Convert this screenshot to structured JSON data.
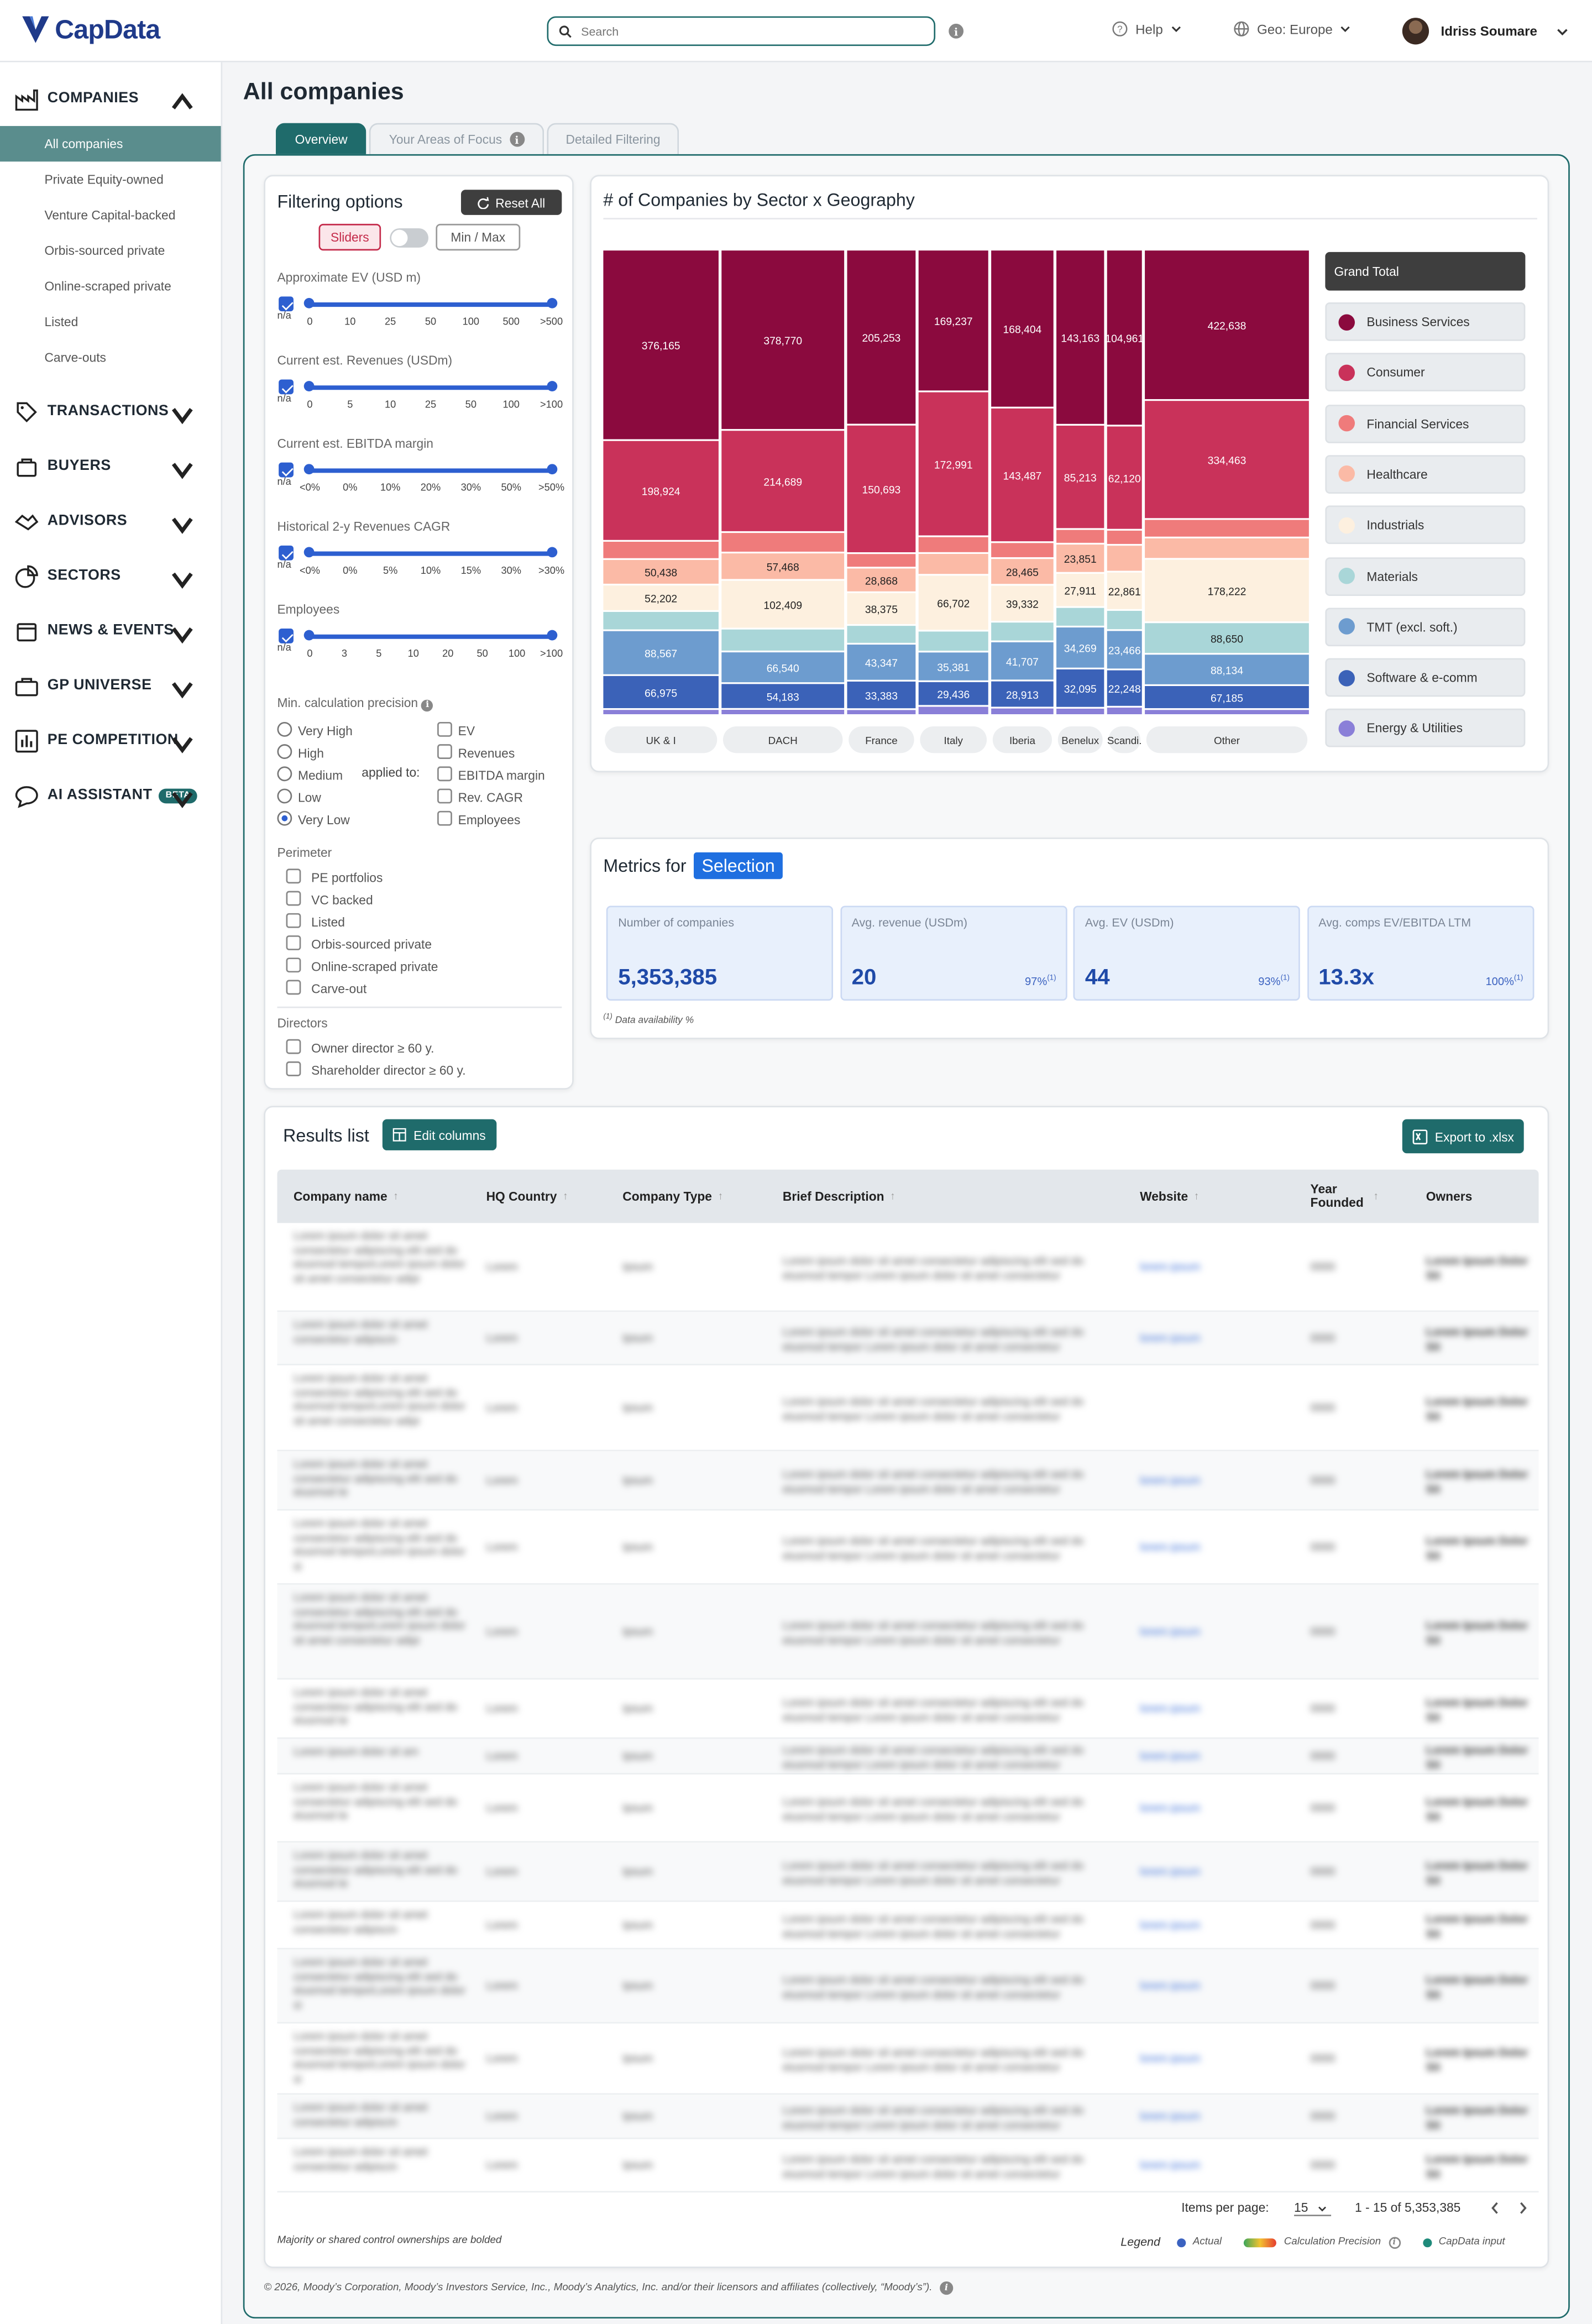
{
  "header": {
    "logo": "CapData",
    "search_placeholder": "Search",
    "help": "Help",
    "geo": "Geo: Europe",
    "user": "Idriss Soumare"
  },
  "sidebar": {
    "companies": "COMPANIES",
    "sub": [
      "All companies",
      "Private Equity-owned",
      "Venture Capital-backed",
      "Orbis-sourced private",
      "Online-scraped private",
      "Listed",
      "Carve-outs"
    ],
    "sections": [
      "TRANSACTIONS",
      "BUYERS",
      "ADVISORS",
      "SECTORS",
      "NEWS & EVENTS",
      "GP UNIVERSE",
      "PE COMPETITION",
      "AI ASSISTANT"
    ],
    "beta": "BETA"
  },
  "page": {
    "title": "All companies",
    "tabs": [
      "Overview",
      "Your Areas of Focus",
      "Detailed Filtering"
    ]
  },
  "filters": {
    "title": "Filtering options",
    "reset": "Reset All",
    "sliders": "Sliders",
    "minmax": "Min / Max",
    "sliders_list": [
      {
        "label": "Approximate EV (USD m)",
        "ticks": [
          "n/a",
          "0",
          "10",
          "25",
          "50",
          "100",
          "500",
          ">500"
        ]
      },
      {
        "label": "Current est. Revenues (USDm)",
        "ticks": [
          "n/a",
          "0",
          "5",
          "10",
          "25",
          "50",
          "100",
          ">100"
        ]
      },
      {
        "label": "Current est. EBITDA margin",
        "ticks": [
          "n/a",
          "<0%",
          "0%",
          "10%",
          "20%",
          "30%",
          "50%",
          ">50%"
        ]
      },
      {
        "label": "Historical 2-y Revenues CAGR",
        "ticks": [
          "n/a",
          "<0%",
          "0%",
          "5%",
          "10%",
          "15%",
          "30%",
          ">30%"
        ]
      },
      {
        "label": "Employees",
        "ticks": [
          "n/a",
          "0",
          "3",
          "5",
          "10",
          "20",
          "50",
          "100",
          ">100"
        ]
      }
    ],
    "precision_title": "Min. calculation precision",
    "precision_levels": [
      "Very High",
      "High",
      "Medium",
      "Low",
      "Very Low"
    ],
    "precision_selected": "Very Low",
    "applied_to": "applied to:",
    "applied_fields": [
      "EV",
      "Revenues",
      "EBITDA margin",
      "Rev. CAGR",
      "Employees"
    ],
    "perimeter_title": "Perimeter",
    "perimeter": [
      "PE portfolios",
      "VC backed",
      "Listed",
      "Orbis-sourced private",
      "Online-scraped private",
      "Carve-out"
    ],
    "directors_title": "Directors",
    "directors": [
      "Owner director ≥ 60 y.",
      "Shareholder director ≥ 60 y."
    ]
  },
  "chart_data": {
    "type": "bar",
    "title": "# of Companies by Sector x Geography",
    "stacked": true,
    "categories": [
      "UK & I",
      "DACH",
      "France",
      "Italy",
      "Iberia",
      "Benelux",
      "Scandi.",
      "Other"
    ],
    "column_width_encodes_total": true,
    "series": [
      {
        "name": "Business Services",
        "color": "#8b0a3e",
        "values": [
          376165,
          378770,
          205253,
          169237,
          168404,
          143163,
          104961,
          422638
        ]
      },
      {
        "name": "Consumer",
        "color": "#c9325a",
        "values": [
          198924,
          214689,
          150693,
          172991,
          143487,
          85213,
          62120,
          334463
        ]
      },
      {
        "name": "Financial Services",
        "color": "#ef7b7b",
        "values": [
          36000,
          43000,
          17000,
          20000,
          17000,
          12000,
          9000,
          52000
        ]
      },
      {
        "name": "Healthcare",
        "color": "#fbbaa6",
        "values": [
          50438,
          57468,
          28868,
          26000,
          28465,
          23851,
          16000,
          60000
        ]
      },
      {
        "name": "Industrials",
        "color": "#fdf0df",
        "values": [
          52202,
          102409,
          38375,
          66702,
          39332,
          27911,
          22861,
          178222
        ]
      },
      {
        "name": "Materials",
        "color": "#a9d6d8",
        "values": [
          38000,
          48000,
          22000,
          25000,
          21000,
          16000,
          12000,
          88650
        ]
      },
      {
        "name": "TMT (excl. soft.)",
        "color": "#6d9ccf",
        "values": [
          88567,
          66540,
          43347,
          35381,
          41707,
          34269,
          23466,
          88134
        ]
      },
      {
        "name": "Software & e-comm",
        "color": "#3b62b8",
        "values": [
          66975,
          54183,
          33383,
          29436,
          28913,
          32095,
          22248,
          67185
        ]
      },
      {
        "name": "Energy & Utilities",
        "color": "#8a7fd8",
        "values": [
          12000,
          13000,
          7000,
          11000,
          8000,
          6000,
          5000,
          17000
        ]
      }
    ],
    "labels": {
      "Business Services": [
        "376,165",
        "378,770",
        "205,253",
        "169,237",
        "168,404",
        "143,163",
        "104,961",
        "422,638"
      ],
      "Consumer": [
        "198,924",
        "214,689",
        "150,693",
        "172,991",
        "143,487",
        "85,213",
        "62,120",
        "334,463"
      ],
      "Healthcare": [
        "50,438",
        "57,468",
        "28,868",
        "",
        "28,465",
        "23,851",
        "",
        ""
      ],
      "Industrials": [
        "52,202",
        "102,409",
        "38,375",
        "66,702",
        "39,332",
        "27,911",
        "22,861",
        "178,222"
      ],
      "Materials": [
        "",
        "",
        "",
        "",
        "",
        "",
        "",
        "88,650"
      ],
      "TMT (excl. soft.)": [
        "88,567",
        "66,540",
        "43,347",
        "35,381",
        "41,707",
        "34,269",
        "23,466",
        "88,134"
      ],
      "Software & e-comm": [
        "66,975",
        "54,183",
        "33,383",
        "29,436",
        "28,913",
        "32,095",
        "22,248",
        "67,185"
      ]
    },
    "legend_total": "Grand Total"
  },
  "metrics": {
    "title": "Metrics for",
    "selection": "Selection",
    "items": [
      {
        "label": "Number of companies",
        "value": "5,353,385",
        "pct": ""
      },
      {
        "label": "Avg. revenue (USDm)",
        "value": "20",
        "pct": "97%"
      },
      {
        "label": "Avg. EV (USDm)",
        "value": "44",
        "pct": "93%"
      },
      {
        "label": "Avg. comps EV/EBITDA LTM",
        "value": "13.3x",
        "pct": "100%"
      }
    ],
    "footnote": "Data availability %"
  },
  "results": {
    "title": "Results list",
    "edit_columns": "Edit columns",
    "export": "Export to .xlsx",
    "columns": [
      "Company name",
      "HQ Country",
      "Company Type",
      "Brief Description",
      "Website",
      "Year Founded",
      "Owners"
    ],
    "items_per_page_label": "Items per page:",
    "items_per_page": "15",
    "range": "1 - 15 of 5,353,385",
    "note": "Majority or shared control ownerships are bolded",
    "legend": "Legend",
    "legend_actual": "Actual",
    "legend_precision": "Calculation Precision",
    "legend_input": "CapData input"
  },
  "footer": "© 2026, Moody’s Corporation, Moody’s Investors Service, Inc., Moody’s Analytics, Inc. and/or their licensors and affiliates (collectively, “Moody’s”)."
}
